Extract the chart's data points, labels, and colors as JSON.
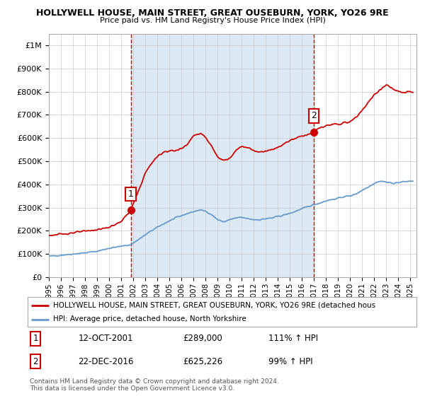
{
  "title1": "HOLLYWELL HOUSE, MAIN STREET, GREAT OUSEBURN, YORK, YO26 9RE",
  "title2": "Price paid vs. HM Land Registry's House Price Index (HPI)",
  "ylabel_ticks": [
    "£0",
    "£100K",
    "£200K",
    "£300K",
    "£400K",
    "£500K",
    "£600K",
    "£700K",
    "£800K",
    "£900K",
    "£1M"
  ],
  "ytick_values": [
    0,
    100000,
    200000,
    300000,
    400000,
    500000,
    600000,
    700000,
    800000,
    900000,
    1000000
  ],
  "ylim": [
    0,
    1050000
  ],
  "xlim_start": 1995.0,
  "xlim_end": 2025.5,
  "x_tick_labels": [
    "1995",
    "1996",
    "1997",
    "1998",
    "1999",
    "2000",
    "2001",
    "2002",
    "2003",
    "2004",
    "2005",
    "2006",
    "2007",
    "2008",
    "2009",
    "2010",
    "2011",
    "2012",
    "2013",
    "2014",
    "2015",
    "2016",
    "2017",
    "2018",
    "2019",
    "2020",
    "2021",
    "2022",
    "2023",
    "2024",
    "2025"
  ],
  "x_tick_positions": [
    1995,
    1996,
    1997,
    1998,
    1999,
    2000,
    2001,
    2002,
    2003,
    2004,
    2005,
    2006,
    2007,
    2008,
    2009,
    2010,
    2011,
    2012,
    2013,
    2014,
    2015,
    2016,
    2017,
    2018,
    2019,
    2020,
    2021,
    2022,
    2023,
    2024,
    2025
  ],
  "sale1_x": 2001.79,
  "sale1_y": 289000,
  "sale1_label": "1",
  "sale2_x": 2016.98,
  "sale2_y": 625226,
  "sale2_label": "2",
  "red_line_color": "#cc0000",
  "blue_line_color": "#6699cc",
  "shade_color": "#dce9f5",
  "vline_color": "#cc0000",
  "grid_color": "#cccccc",
  "background_color": "#ffffff",
  "legend_line1": "HOLLYWELL HOUSE, MAIN STREET, GREAT OUSEBURN, YORK, YO26 9RE (detached hous",
  "legend_line2": "HPI: Average price, detached house, North Yorkshire",
  "annotation1_date": "12-OCT-2001",
  "annotation1_price": "£289,000",
  "annotation1_hpi": "111% ↑ HPI",
  "annotation2_date": "22-DEC-2016",
  "annotation2_price": "£625,226",
  "annotation2_hpi": "99% ↑ HPI",
  "footer": "Contains HM Land Registry data © Crown copyright and database right 2024.\nThis data is licensed under the Open Government Licence v3.0."
}
